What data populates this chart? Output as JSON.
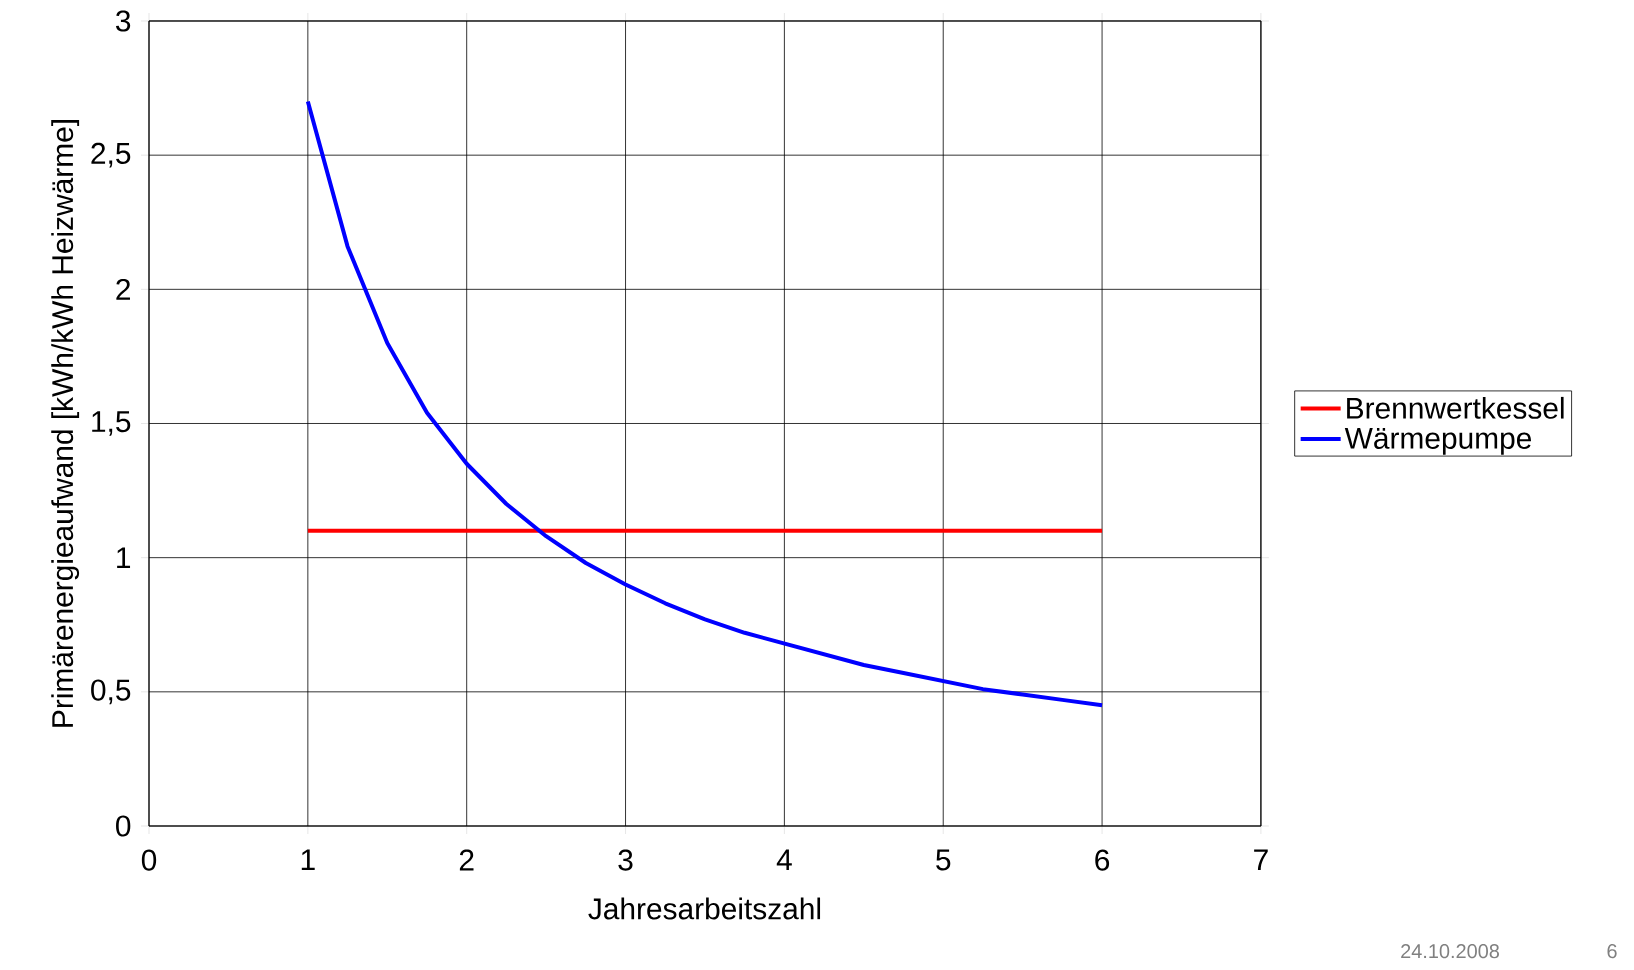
{
  "chart_data": {
    "type": "line",
    "xlabel": "Jahresarbeitszahl",
    "ylabel": "Primärenergieaufwand [kWh/kWh Heizwärme]",
    "xlim": [
      0,
      7
    ],
    "xticks": [
      0,
      1,
      2,
      3,
      4,
      5,
      6,
      7
    ],
    "ylim": [
      0,
      3
    ],
    "yticks": [
      0,
      {
        "value": 0.5,
        "label": "0,5"
      },
      1,
      {
        "value": 1.5,
        "label": "1,5"
      },
      2,
      {
        "value": 2.5,
        "label": "2,5"
      },
      3
    ],
    "grid": true,
    "legend": "right",
    "line_style": "solid",
    "series": [
      {
        "name": "Brennwertkessel",
        "color": "#ff0000",
        "x": [
          1,
          6
        ],
        "values": [
          1.1,
          1.1
        ]
      },
      {
        "name": "Wärmepumpe",
        "color": "#0000ff",
        "x": [
          1,
          1.25,
          1.5,
          1.75,
          2,
          2.25,
          2.5,
          2.75,
          3,
          3.25,
          3.5,
          3.75,
          4,
          4.25,
          4.5,
          4.75,
          5,
          5.25,
          5.5,
          5.75,
          6
        ],
        "values": [
          2.7,
          2.16,
          1.8,
          1.54,
          1.35,
          1.2,
          1.08,
          0.98,
          0.9,
          0.83,
          0.77,
          0.72,
          0.68,
          0.64,
          0.6,
          0.57,
          0.54,
          0.51,
          0.49,
          0.47,
          0.45
        ]
      }
    ],
    "annotations": [
      "24.10.2008",
      "6"
    ]
  }
}
